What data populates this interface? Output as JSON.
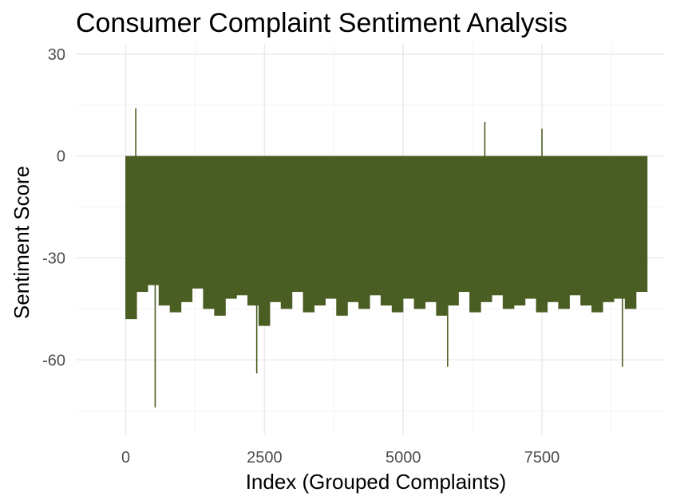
{
  "chart_data": {
    "type": "bar",
    "title": "Consumer Complaint Sentiment Analysis",
    "xlabel": "Index (Grouped Complaints)",
    "ylabel": "Sentiment Score",
    "xlim": [
      -900,
      9700
    ],
    "ylim": [
      -82,
      33
    ],
    "x_ticks": [
      0,
      2500,
      5000,
      7500
    ],
    "x_tick_labels": [
      "0",
      "2500",
      "5000",
      "7500"
    ],
    "y_ticks": [
      30,
      0,
      -30,
      -60
    ],
    "y_tick_labels": [
      "30",
      "0",
      "-30",
      "-60"
    ],
    "grid": true,
    "legend": "none",
    "bar_color": "#4a5e23",
    "series": [
      {
        "x": [
          0,
          200,
          400,
          600,
          800,
          1000,
          1200,
          1400,
          1600,
          1800,
          2000,
          2200,
          2400,
          2600,
          2800,
          3000,
          3200,
          3400,
          3600,
          3800,
          4000,
          4200,
          4400,
          4600,
          4800,
          5000,
          5200,
          5400,
          5600,
          5800,
          6000,
          6200,
          6400,
          6600,
          6800,
          7000,
          7200,
          7400,
          7600,
          7800,
          8000,
          8200,
          8400,
          8600,
          8800,
          9000,
          9200
        ],
        "values": [
          -48,
          -40,
          -38,
          -44,
          -46,
          -43,
          -39,
          -45,
          -47,
          -42,
          -41,
          -44,
          -50,
          -43,
          -45,
          -40,
          -46,
          -44,
          -42,
          -47,
          -43,
          -45,
          -41,
          -44,
          -46,
          -42,
          -45,
          -43,
          -47,
          -44,
          -40,
          -46,
          -43,
          -41,
          -45,
          -44,
          -42,
          -46,
          -43,
          -45,
          -41,
          -44,
          -46,
          -43,
          -42,
          -45,
          -40
        ]
      }
    ],
    "extremes": [
      {
        "x": 180,
        "value": 14
      },
      {
        "x": 530,
        "value": -74
      },
      {
        "x": 2360,
        "value": -64
      },
      {
        "x": 6470,
        "value": 10
      },
      {
        "x": 7500,
        "value": 8
      },
      {
        "x": 5800,
        "value": -62
      },
      {
        "x": 8950,
        "value": -62
      }
    ]
  }
}
